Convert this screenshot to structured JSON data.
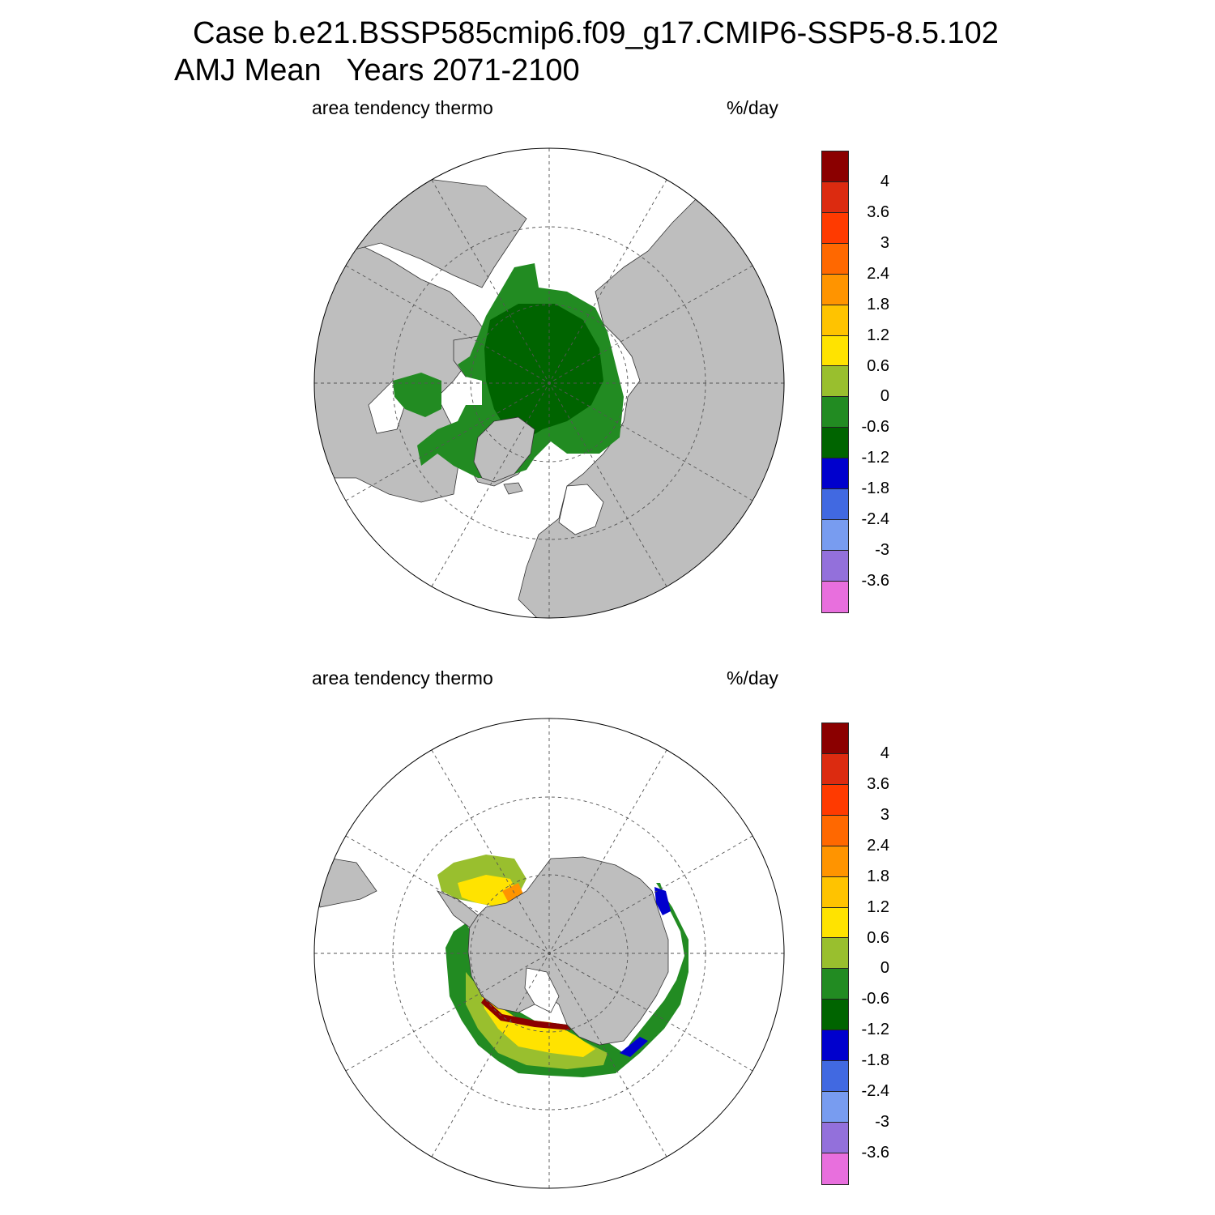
{
  "header": {
    "title_line1": "Case b.e21.BSSP585cmip6.f09_g17.CMIP6-SSP5-8.5.102",
    "title_line2": "AMJ Mean   Years 2071-2100"
  },
  "panels": [
    {
      "id": "north",
      "variable_label": "area tendency thermo",
      "units_label": "%/day",
      "hemisphere": "northern"
    },
    {
      "id": "south",
      "variable_label": "area tendency thermo",
      "units_label": "%/day",
      "hemisphere": "southern"
    }
  ],
  "colorbar": {
    "levels": [
      "4",
      "3.6",
      "3",
      "2.4",
      "1.8",
      "1.2",
      "0.6",
      "0",
      "-0.6",
      "-1.2",
      "-1.8",
      "-2.4",
      "-3",
      "-3.6"
    ],
    "colors": [
      "#8b0000",
      "#dc2b10",
      "#ff3a00",
      "#ff6800",
      "#ff9400",
      "#ffc300",
      "#ffe300",
      "#99bf2e",
      "#228b22",
      "#006400",
      "#0000cd",
      "#4169e1",
      "#789cf0",
      "#9370db",
      "#e86fdd"
    ]
  },
  "map_colors": {
    "land": "#bebebe",
    "ocean": "#ffffff",
    "grid": "#555555"
  }
}
